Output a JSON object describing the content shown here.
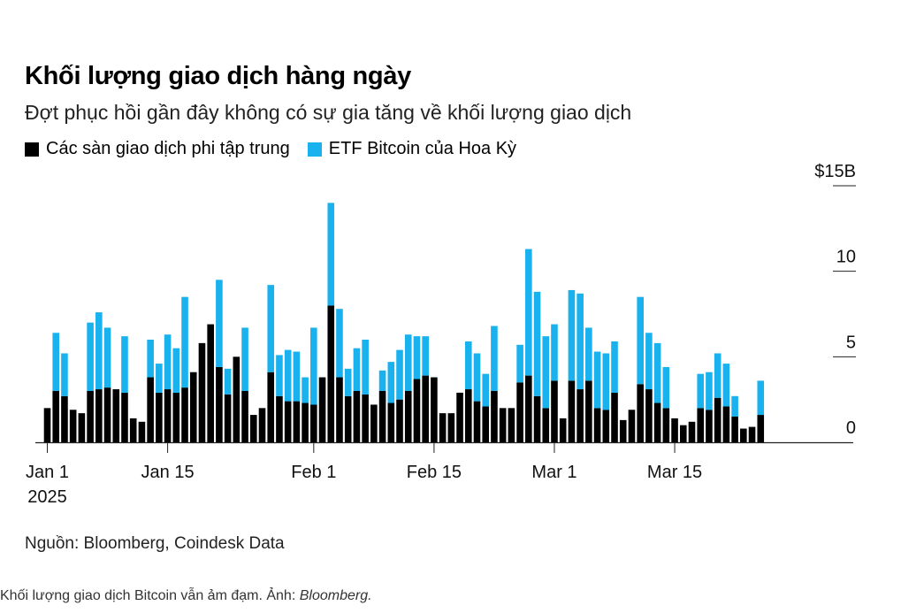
{
  "title": "Khối lượng giao dịch hàng ngày",
  "subtitle": "Đợt phục hồi gần đây không có sự gia tăng về khối lượng giao dịch",
  "legend": [
    {
      "label": "Các sàn giao dịch phi tập trung",
      "color": "#000000"
    },
    {
      "label": "ETF Bitcoin của Hoa Kỳ",
      "color": "#19b2ee"
    }
  ],
  "source": "Nguồn: Bloomberg, Coindesk Data",
  "caption": {
    "text": "Khối lượng giao dịch Bitcoin vẫn ảm đạm. Ảnh: ",
    "credit": "Bloomberg."
  },
  "chart_data": {
    "type": "bar",
    "stacked": true,
    "x_tick_labels": [
      {
        "label": "Jan 1",
        "sub": "2025",
        "index": 0
      },
      {
        "label": "Jan 15",
        "sub": "",
        "index": 14
      },
      {
        "label": "Feb 1",
        "sub": "",
        "index": 31
      },
      {
        "label": "Feb 15",
        "sub": "",
        "index": 45
      },
      {
        "label": "Mar 1",
        "sub": "",
        "index": 59
      },
      {
        "label": "Mar 15",
        "sub": "",
        "index": 73
      }
    ],
    "y_ticks": [
      {
        "value": 0,
        "label": "0"
      },
      {
        "value": 5,
        "label": "5"
      },
      {
        "value": 10,
        "label": "10"
      },
      {
        "value": 15,
        "label": "$15B"
      }
    ],
    "ylim": [
      0,
      15
    ],
    "grid": false,
    "legend_placement": "top-left",
    "x_start_date": "2025-01-01",
    "series": [
      {
        "name": "Các sàn giao dịch phi tập trung",
        "color": "#000000",
        "values": [
          2.0,
          3.0,
          2.7,
          1.9,
          1.7,
          3.0,
          3.1,
          3.2,
          3.1,
          2.9,
          1.4,
          1.2,
          3.8,
          2.9,
          3.1,
          2.9,
          3.2,
          4.1,
          5.8,
          6.9,
          4.4,
          2.8,
          5.0,
          3.0,
          1.6,
          2.0,
          4.1,
          2.7,
          2.4,
          2.4,
          2.3,
          2.2,
          3.8,
          8.0,
          3.8,
          2.7,
          3.0,
          2.8,
          2.2,
          3.0,
          2.3,
          2.5,
          3.0,
          3.7,
          3.9,
          3.8,
          1.7,
          1.7,
          2.9,
          3.1,
          2.4,
          2.1,
          3.0,
          2.0,
          2.0,
          3.5,
          3.9,
          2.7,
          2.0,
          3.6,
          1.4,
          3.6,
          3.1,
          3.6,
          2.0,
          1.9,
          2.9,
          1.3,
          1.9,
          3.4,
          3.1,
          2.3,
          2.0,
          1.4,
          1.0,
          1.2,
          2.0,
          1.9,
          2.6,
          2.1,
          1.5,
          0.8,
          0.9,
          1.6
        ]
      },
      {
        "name": "ETF Bitcoin của Hoa Kỳ",
        "color": "#19b2ee",
        "values": [
          0,
          3.4,
          2.5,
          0,
          0,
          4.0,
          4.5,
          3.5,
          0,
          3.3,
          0,
          0,
          2.2,
          1.7,
          3.2,
          2.6,
          5.3,
          0,
          0,
          0,
          5.1,
          1.5,
          0,
          3.7,
          0,
          0,
          5.1,
          2.4,
          3.0,
          2.9,
          1.5,
          4.5,
          0,
          6.0,
          4.0,
          1.6,
          2.5,
          3.2,
          0,
          1.2,
          2.4,
          2.9,
          3.3,
          2.5,
          2.3,
          0,
          0,
          0,
          0,
          2.8,
          2.8,
          1.9,
          3.8,
          0,
          0,
          2.2,
          7.4,
          6.1,
          4.2,
          3.3,
          0,
          5.3,
          5.6,
          3.1,
          3.3,
          3.3,
          3.0,
          0,
          0,
          5.1,
          3.3,
          3.5,
          2.4,
          0,
          0,
          0,
          2.0,
          2.2,
          2.6,
          2.5,
          1.2,
          0,
          0,
          2.0
        ]
      }
    ]
  }
}
